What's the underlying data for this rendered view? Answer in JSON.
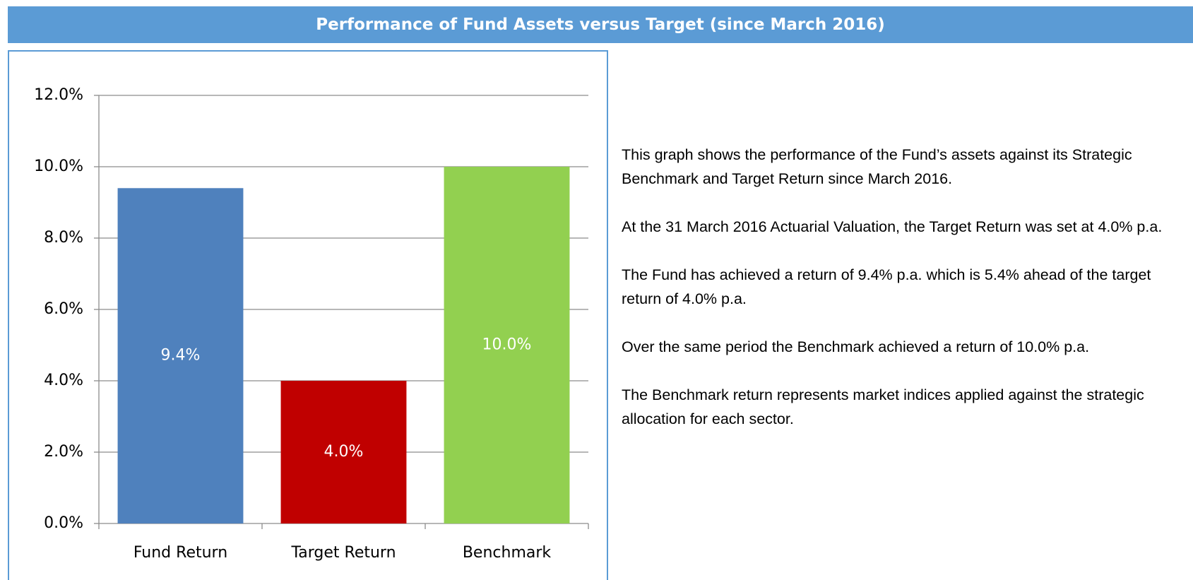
{
  "header": {
    "title": "Performance of Fund Assets versus Target (since March 2016)"
  },
  "chart_data": {
    "type": "bar",
    "categories": [
      "Fund Return",
      "Target Return",
      "Benchmark"
    ],
    "values": [
      9.4,
      4.0,
      10.0
    ],
    "value_labels": [
      "9.4%",
      "4.0%",
      "10.0%"
    ],
    "colors": [
      "#4f81bd",
      "#c00000",
      "#92d050"
    ],
    "ylim": [
      0,
      12
    ],
    "yticks": [
      {
        "value": 0,
        "label": "0.0%"
      },
      {
        "value": 2,
        "label": "2.0%"
      },
      {
        "value": 4,
        "label": "4.0%"
      },
      {
        "value": 6,
        "label": "6.0%"
      },
      {
        "value": 8,
        "label": "8.0%"
      },
      {
        "value": 10,
        "label": "10.0%"
      },
      {
        "value": 12,
        "label": "12.0%"
      }
    ],
    "grid": true
  },
  "text": {
    "paragraphs": [
      "This graph shows the performance of the Fund’s assets against its Strategic Benchmark and Target Return since March 2016.",
      "At the 31 March 2016 Actuarial Valuation, the Target Return was set at 4.0% p.a.",
      "The Fund has achieved a return of 9.4% p.a. which is 5.4% ahead of the target return of 4.0% p.a.",
      "Over the same period the Benchmark achieved a return of 10.0% p.a.",
      "The Benchmark return represents market indices applied against the strategic allocation for each sector."
    ]
  }
}
